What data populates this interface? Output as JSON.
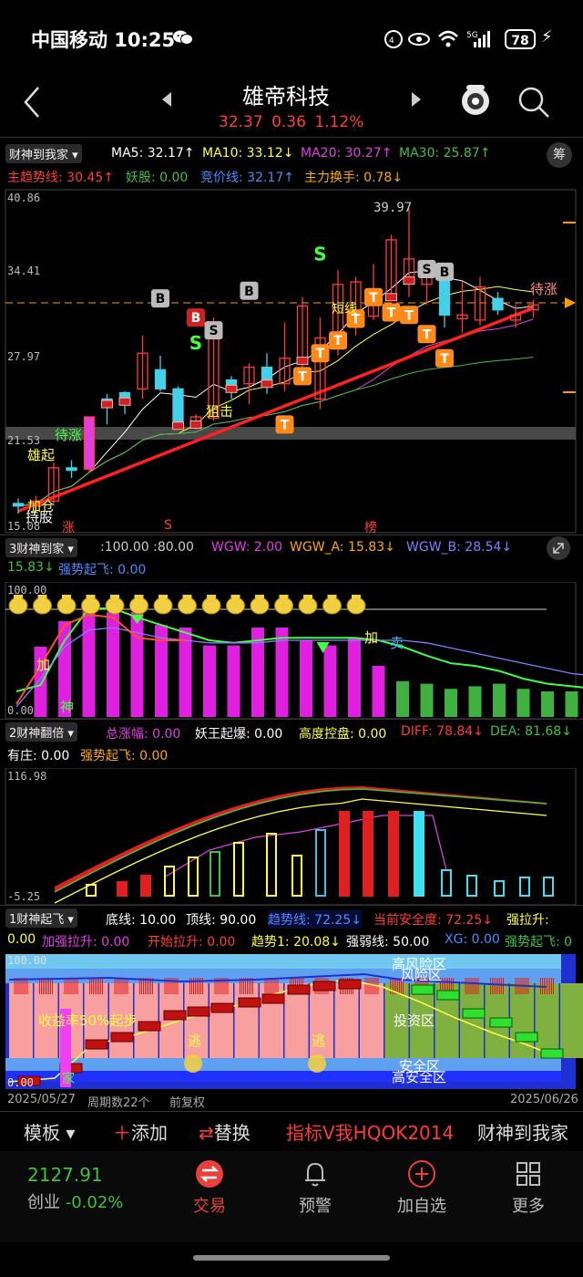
{
  "status_bar": {
    "carrier_time": "中国移动 10:25",
    "battery": "78"
  },
  "header": {
    "title": "雄帝科技",
    "price": "32.37",
    "change": "0.36",
    "pct": "1.12%"
  },
  "main_panel": {
    "selector": "财神到我家",
    "ma5": "MA5: 32.17↑",
    "ma10": "MA10: 33.12↓",
    "ma20": "MA20: 30.27↑",
    "ma30": "MA30: 25.87↑",
    "line2_a": "主趋势线: 30.45↑",
    "line2_b": "妖股: 0.00",
    "line2_c": "竞价线: 32.17↑",
    "line2_d": "主力换手: 0.78↓",
    "chip_btn": "筹",
    "y_labels": [
      "40.86",
      "34.41",
      "27.97",
      "21.53",
      "15.08"
    ],
    "high_label": "39.97",
    "annotations": {
      "daizhang_left": "待涨",
      "daizhang_right": "待涨",
      "xiongqi": "雄起",
      "jiacang": "加仓",
      "chigu": "持股",
      "zhang": "涨",
      "s_red": "S",
      "bang": "榜",
      "duanxian": "短线",
      "gouji": "狙击"
    },
    "candles": [
      {
        "o": 16.8,
        "c": 16.6,
        "h": 17.2,
        "l": 16.0
      },
      {
        "o": 16.6,
        "c": 17.0,
        "h": 17.4,
        "l": 16.2
      },
      {
        "o": 17.0,
        "c": 19.6,
        "h": 20.0,
        "l": 16.8
      },
      {
        "o": 19.6,
        "c": 19.4,
        "h": 20.2,
        "l": 18.8
      },
      {
        "o": 19.5,
        "c": 23.6,
        "h": 23.6,
        "l": 19.2
      },
      {
        "o": 25.0,
        "c": 24.6,
        "h": 25.4,
        "l": 23.0
      },
      {
        "o": 25.5,
        "c": 24.8,
        "h": 25.6,
        "l": 23.8
      },
      {
        "o": 25.8,
        "c": 28.6,
        "h": 30.0,
        "l": 25.0
      },
      {
        "o": 27.3,
        "c": 25.8,
        "h": 28.4,
        "l": 25.6
      },
      {
        "o": 25.8,
        "c": 22.9,
        "h": 26.0,
        "l": 22.7
      },
      {
        "o": 23.0,
        "c": 23.6,
        "h": 23.8,
        "l": 22.6
      },
      {
        "o": 23.5,
        "c": 29.9,
        "h": 31.4,
        "l": 23.3
      },
      {
        "o": 26.5,
        "c": 25.8,
        "h": 26.8,
        "l": 25.0
      },
      {
        "o": 26.2,
        "c": 27.5,
        "h": 27.8,
        "l": 24.6
      },
      {
        "o": 27.5,
        "c": 26.2,
        "h": 28.6,
        "l": 25.4
      },
      {
        "o": 26.2,
        "c": 28.2,
        "h": 31.0,
        "l": 25.6
      },
      {
        "o": 28.0,
        "c": 32.3,
        "h": 33.0,
        "l": 26.2
      },
      {
        "o": 25.0,
        "c": 29.8,
        "h": 31.4,
        "l": 24.2
      },
      {
        "o": 29.5,
        "c": 34.0,
        "h": 35.1,
        "l": 28.4
      },
      {
        "o": 32.0,
        "c": 34.2,
        "h": 34.6,
        "l": 30.0
      },
      {
        "o": 31.5,
        "c": 32.9,
        "h": 35.6,
        "l": 31.2
      },
      {
        "o": 33.0,
        "c": 37.5,
        "h": 37.9,
        "l": 32.8
      },
      {
        "o": 34.3,
        "c": 36.0,
        "h": 39.97,
        "l": 33.0
      },
      {
        "o": 34.0,
        "c": 34.7,
        "h": 35.6,
        "l": 32.4
      },
      {
        "o": 35.0,
        "c": 31.6,
        "h": 35.6,
        "l": 30.6
      },
      {
        "o": 31.3,
        "c": 31.6,
        "h": 34.2,
        "l": 30.2
      },
      {
        "o": 31.2,
        "c": 33.8,
        "h": 34.6,
        "l": 30.8
      },
      {
        "o": 32.9,
        "c": 32.0,
        "h": 33.4,
        "l": 31.6
      },
      {
        "o": 31.2,
        "c": 31.6,
        "h": 32.4,
        "l": 30.6
      },
      {
        "o": 32.0,
        "c": 32.4,
        "h": 32.8,
        "l": 31.4
      }
    ]
  },
  "panel3": {
    "selector": "3财神到家",
    "legend_a": ":100.00 :80.00",
    "wgw": "WGW: 2.00",
    "wgw_a": "WGW_A: 15.83↓",
    "wgw_b": "WGW_B: 28.54↓",
    "line2_a": "15.83↓",
    "line2_b": "强势起飞: 0.00",
    "y_top": "100.00",
    "y_bot": "0.00",
    "labels": {
      "jia1": "加",
      "shen": "神",
      "jia2": "加",
      "mai": "卖"
    },
    "bar_levels": [
      0,
      55,
      75,
      90,
      82,
      82,
      72,
      70,
      56,
      56,
      70,
      70,
      60,
      56,
      62,
      40,
      28,
      26,
      22,
      24,
      26,
      22,
      20,
      20,
      20
    ],
    "bar_colors_magenta_until": 16,
    "line_green": [
      20,
      25,
      60,
      85,
      85,
      78,
      72,
      66,
      60,
      58,
      60,
      62,
      62,
      62,
      62,
      60,
      55,
      48,
      42,
      40,
      36,
      30,
      26,
      24,
      22
    ],
    "line_purple": [
      8,
      30,
      55,
      68,
      70,
      66,
      62,
      60,
      58,
      58,
      58,
      60,
      60,
      60,
      60,
      60,
      60,
      58,
      54,
      50,
      46,
      42,
      38,
      34,
      32
    ]
  },
  "panel2": {
    "selector": "2财神翻倍",
    "a": "总涨幅: 0.00",
    "b": "妖王起爆: 0.00",
    "c": "高度控盘: 0.00",
    "d": "DIFF: 78.84↓",
    "e": "DEA: 81.68↓",
    "f": "有庄: 0.00",
    "g": "强势起飞: 0.00",
    "y_top": "116.98",
    "y_bot": "-5.25"
  },
  "panel1": {
    "selector": "1财神起飞",
    "a": "底线: 10.00",
    "b": "顶线: 90.00",
    "c": "趋势线: 72.25↓",
    "d": "当前安全度: 72.25↓",
    "e": "强拉升:",
    "f": "0.00",
    "g": "加强拉升: 0.00",
    "h": "开始拉升: 0.00",
    "i": "趋势1: 20.08↓",
    "j": "强弱线: 50.00",
    "k": "XG: 0.00",
    "l": "强势起飞: 0",
    "y_top": "100.00",
    "y_bot": "0.00",
    "zones": {
      "high_risk": "高风险区",
      "risk": "风险区",
      "invest": "投资区",
      "safe": "安全区",
      "high_safe": "高安全区",
      "note": "收益率50%起步",
      "flee": "逃",
      "jia": "家"
    }
  },
  "footer_info": {
    "date_left": "2025/05/27",
    "period": "周期数22个",
    "fq": "前复权",
    "date_right": "2025/06/26"
  },
  "toolbar": {
    "template": "模板",
    "add": "添加",
    "replace": "替换",
    "indicator": "指标V我HQOK2014",
    "name": "财神到我家"
  },
  "tabbar": {
    "index_value": "2127.91",
    "index_name": "创业",
    "index_pct": "-0.02%",
    "trade": "交易",
    "alert": "预警",
    "add_fav": "加自选",
    "more": "更多"
  },
  "colors": {
    "up": "#ff3b3b",
    "down": "#44d0e8",
    "ma5": "#ffffff",
    "ma10": "#ffff40",
    "ma20": "#e040e0",
    "ma30": "#40c040",
    "orange": "#ff8a1a"
  }
}
